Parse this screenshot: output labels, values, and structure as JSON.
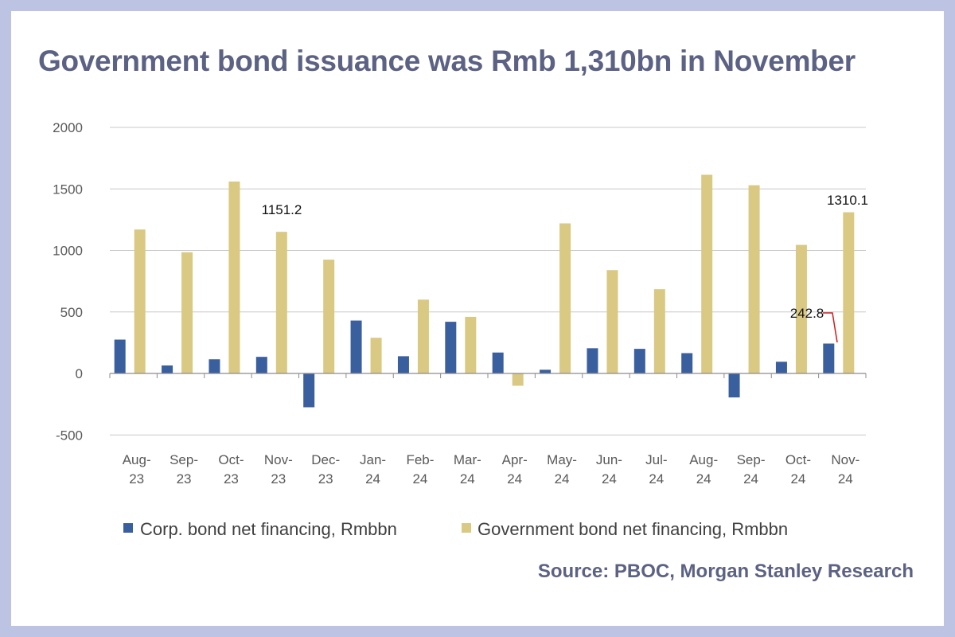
{
  "title": "Government bond issuance was Rmb 1,310bn in November",
  "source": "Source: PBOC, Morgan Stanley Research",
  "colors": {
    "background": "#bcc3e3",
    "corp": "#3a5f9f",
    "gov": "#d9c983",
    "title": "#5c6284",
    "callout_line": "#d01a1a"
  },
  "chart_data": {
    "type": "bar",
    "categories": [
      "Aug-23",
      "Sep-23",
      "Oct-23",
      "Nov-23",
      "Dec-23",
      "Jan-24",
      "Feb-24",
      "Mar-24",
      "Apr-24",
      "May-24",
      "Jun-24",
      "Jul-24",
      "Aug-24",
      "Sep-24",
      "Oct-24",
      "Nov-24"
    ],
    "category_lines": [
      [
        "Aug-",
        "23"
      ],
      [
        "Sep-",
        "23"
      ],
      [
        "Oct-",
        "23"
      ],
      [
        "Nov-",
        "23"
      ],
      [
        "Dec-",
        "23"
      ],
      [
        "Jan-",
        "24"
      ],
      [
        "Feb-",
        "24"
      ],
      [
        "Mar-",
        "24"
      ],
      [
        "Apr-",
        "24"
      ],
      [
        "May-",
        "24"
      ],
      [
        "Jun-",
        "24"
      ],
      [
        "Jul-",
        "24"
      ],
      [
        "Aug-",
        "24"
      ],
      [
        "Sep-",
        "24"
      ],
      [
        "Oct-",
        "24"
      ],
      [
        "Nov-",
        "24"
      ]
    ],
    "series": [
      {
        "name": "Corp. bond net financing, Rmbbn",
        "color": "#3a5f9f",
        "values": [
          275,
          65,
          115,
          135,
          -275,
          430,
          140,
          420,
          170,
          30,
          205,
          200,
          165,
          -195,
          95,
          242.8
        ]
      },
      {
        "name": "Government bond net financing, Rmbbn",
        "color": "#d9c983",
        "values": [
          1170,
          985,
          1560,
          1151.2,
          925,
          290,
          600,
          460,
          -100,
          1220,
          840,
          685,
          1615,
          1530,
          1045,
          1310.1
        ]
      }
    ],
    "ylim": [
      -500,
      2000
    ],
    "yticks": [
      -500,
      0,
      500,
      1000,
      1500,
      2000
    ],
    "grid": true,
    "legend_position": "bottom",
    "annotations": [
      {
        "text": "1151.2",
        "series": 1,
        "index": 3
      },
      {
        "text": "1310.1",
        "series": 1,
        "index": 15
      },
      {
        "text": "242.8",
        "series": 0,
        "index": 15
      }
    ]
  }
}
